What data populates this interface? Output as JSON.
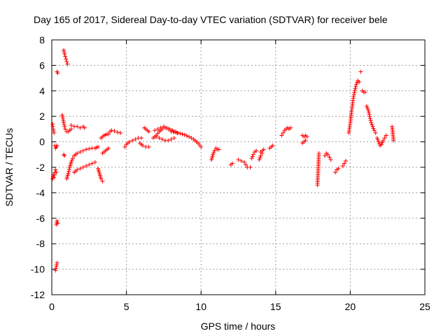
{
  "chart_data": {
    "type": "scatter",
    "title": "Day 165 of 2017, Sidereal Day-to-day VTEC variation (SDTVAR) for receiver bele",
    "xlabel": "GPS time / hours",
    "ylabel": "SDTVAR / TECUs",
    "xlim": [
      0,
      25
    ],
    "ylim": [
      -12,
      8
    ],
    "xticks": [
      0,
      5,
      10,
      15,
      20,
      25
    ],
    "yticks": [
      -12,
      -10,
      -8,
      -6,
      -4,
      -2,
      0,
      2,
      4,
      6,
      8
    ],
    "grid": true,
    "marker": "+",
    "color": "#ff0000",
    "segments": [
      {
        "x": [
          0.05,
          0.1,
          0.15
        ],
        "y": [
          1.4,
          1.0,
          0.7
        ]
      },
      {
        "x": [
          0.05,
          0.1,
          0.15,
          0.2,
          0.25,
          0.3
        ],
        "y": [
          -2.9,
          -2.6,
          -2.8,
          -2.4,
          -2.2,
          -2.4
        ]
      },
      {
        "x": [
          0.2,
          0.25,
          0.3,
          0.35
        ],
        "y": [
          -0.3,
          -0.5,
          -0.4,
          -0.3
        ]
      },
      {
        "x": [
          0.35,
          0.4
        ],
        "y": [
          5.5,
          5.4
        ]
      },
      {
        "x": [
          0.3,
          0.35,
          0.4
        ],
        "y": [
          -6.5,
          -6.2,
          -6.4
        ]
      },
      {
        "x": [
          0.25,
          0.3,
          0.35
        ],
        "y": [
          -10.1,
          -9.8,
          -9.5
        ]
      },
      {
        "x": [
          0.8,
          0.85,
          0.9,
          0.95,
          1.0,
          1.05
        ],
        "y": [
          7.2,
          6.9,
          6.7,
          6.5,
          6.3,
          6.1
        ]
      },
      {
        "x": [
          0.7,
          0.75,
          0.8,
          0.85,
          0.9,
          1.0,
          1.1,
          1.2,
          1.3
        ],
        "y": [
          2.1,
          1.8,
          1.5,
          1.2,
          1.0,
          0.8,
          0.8,
          0.9,
          1.0
        ]
      },
      {
        "x": [
          0.8,
          0.85
        ],
        "y": [
          -1.0,
          -1.1
        ]
      },
      {
        "x": [
          1.3,
          1.5,
          1.7,
          1.9,
          2.1,
          2.2
        ],
        "y": [
          1.3,
          1.2,
          1.2,
          1.1,
          1.2,
          1.1
        ]
      },
      {
        "x": [
          1.0,
          1.1,
          1.2,
          1.3,
          1.4,
          1.5,
          1.7,
          1.9,
          2.1,
          2.3,
          2.5,
          2.7,
          2.9,
          3.0,
          3.1
        ],
        "y": [
          -2.9,
          -2.5,
          -2.0,
          -1.6,
          -1.3,
          -1.1,
          -0.9,
          -0.8,
          -0.7,
          -0.6,
          -0.55,
          -0.5,
          -0.5,
          -0.45,
          -0.4
        ]
      },
      {
        "x": [
          1.5,
          1.7,
          1.9,
          2.1,
          2.3,
          2.5,
          2.7,
          2.9
        ],
        "y": [
          -2.4,
          -2.2,
          -2.1,
          -2.0,
          -1.9,
          -1.8,
          -1.7,
          -1.6
        ]
      },
      {
        "x": [
          3.1,
          3.2,
          3.3,
          3.4
        ],
        "y": [
          -2.1,
          -2.5,
          -2.9,
          -3.1
        ]
      },
      {
        "x": [
          3.4,
          3.5,
          3.6,
          3.7,
          3.8
        ],
        "y": [
          -0.9,
          -0.8,
          -0.7,
          -0.6,
          -0.5
        ]
      },
      {
        "x": [
          3.3,
          3.4,
          3.5,
          3.6,
          3.7,
          3.8
        ],
        "y": [
          0.3,
          0.4,
          0.5,
          0.55,
          0.6,
          0.6
        ]
      },
      {
        "x": [
          3.9,
          4.0,
          4.2,
          4.4,
          4.6
        ],
        "y": [
          0.8,
          0.9,
          0.85,
          0.75,
          0.7
        ]
      },
      {
        "x": [
          4.9,
          5.0,
          5.2,
          5.4,
          5.6,
          5.8,
          6.0
        ],
        "y": [
          -0.4,
          -0.2,
          0.0,
          0.1,
          0.2,
          0.3,
          0.3
        ]
      },
      {
        "x": [
          5.9,
          6.0,
          6.1,
          6.3,
          6.5
        ],
        "y": [
          -0.1,
          -0.2,
          -0.3,
          -0.4,
          -0.4
        ]
      },
      {
        "x": [
          6.2,
          6.3,
          6.4,
          6.5
        ],
        "y": [
          1.1,
          1.0,
          0.9,
          0.8
        ]
      },
      {
        "x": [
          6.8,
          7.0,
          7.2,
          7.4,
          7.6,
          7.8,
          8.0,
          8.2,
          8.4
        ],
        "y": [
          0.3,
          0.5,
          0.8,
          1.0,
          1.1,
          1.0,
          0.9,
          0.8,
          0.7
        ]
      },
      {
        "x": [
          6.9,
          7.1,
          7.3,
          7.5,
          7.7,
          7.9,
          8.1,
          8.3
        ],
        "y": [
          0.9,
          1.0,
          1.1,
          1.2,
          1.1,
          1.0,
          0.9,
          0.8
        ]
      },
      {
        "x": [
          7.0,
          7.2,
          7.4,
          7.6,
          7.8,
          8.0,
          8.2
        ],
        "y": [
          0.4,
          0.3,
          0.2,
          0.1,
          0.1,
          0.2,
          0.3
        ]
      },
      {
        "x": [
          8.0,
          8.3,
          8.6,
          8.9,
          9.2,
          9.5,
          9.8,
          10.0
        ],
        "y": [
          0.8,
          0.75,
          0.65,
          0.55,
          0.4,
          0.2,
          -0.1,
          -0.4
        ]
      },
      {
        "x": [
          10.7,
          10.8,
          10.9,
          11.0,
          11.1,
          11.2
        ],
        "y": [
          -1.4,
          -1.0,
          -0.7,
          -0.5,
          -0.6,
          -0.6
        ]
      },
      {
        "x": [
          12.0,
          12.1
        ],
        "y": [
          -1.8,
          -1.7
        ]
      },
      {
        "x": [
          12.5,
          12.7,
          12.9,
          13.0,
          13.1,
          13.3
        ],
        "y": [
          -1.4,
          -1.5,
          -1.6,
          -1.8,
          -2.0,
          -2.0
        ]
      },
      {
        "x": [
          13.4,
          13.5,
          13.6,
          13.7
        ],
        "y": [
          -1.3,
          -1.0,
          -0.8,
          -0.7
        ]
      },
      {
        "x": [
          13.9,
          14.0,
          14.1
        ],
        "y": [
          -1.4,
          -1.1,
          -0.9
        ]
      },
      {
        "x": [
          14.0,
          14.1,
          14.2
        ],
        "y": [
          -0.8,
          -0.7,
          -0.6
        ]
      },
      {
        "x": [
          14.6,
          14.7,
          14.8
        ],
        "y": [
          -0.5,
          -0.4,
          -0.3
        ]
      },
      {
        "x": [
          15.4,
          15.5,
          15.6,
          15.7,
          15.8,
          15.9,
          16.0
        ],
        "y": [
          0.5,
          0.7,
          0.9,
          1.0,
          1.1,
          1.0,
          1.1
        ]
      },
      {
        "x": [
          16.8,
          16.9,
          17.0,
          17.1
        ],
        "y": [
          0.5,
          0.4,
          0.5,
          0.4
        ]
      },
      {
        "x": [
          16.8,
          16.9,
          17.0
        ],
        "y": [
          -0.1,
          0.0,
          0.1
        ]
      },
      {
        "x": [
          17.8,
          17.9
        ],
        "y": [
          -3.4,
          -0.9
        ]
      },
      {
        "x": [
          18.3,
          18.4,
          18.5,
          18.6,
          18.7
        ],
        "y": [
          -1.1,
          -0.9,
          -1.0,
          -1.2,
          -1.4
        ]
      },
      {
        "x": [
          19.0,
          19.1,
          19.2
        ],
        "y": [
          -2.4,
          -2.2,
          -2.1
        ]
      },
      {
        "x": [
          19.5,
          19.6,
          19.7
        ],
        "y": [
          -1.9,
          -1.7,
          -1.5
        ]
      },
      {
        "x": [
          19.9,
          20.0,
          20.1,
          20.2,
          20.3,
          20.4,
          20.5,
          20.6
        ],
        "y": [
          0.7,
          1.5,
          2.5,
          3.4,
          4.0,
          4.5,
          4.8,
          4.7
        ]
      },
      {
        "x": [
          20.7
        ],
        "y": [
          5.5
        ]
      },
      {
        "x": [
          20.8,
          20.9,
          21.0
        ],
        "y": [
          4.0,
          3.9,
          3.9
        ]
      },
      {
        "x": [
          21.1,
          21.2,
          21.3,
          21.4,
          21.5,
          21.6,
          21.7
        ],
        "y": [
          2.8,
          2.5,
          2.0,
          1.5,
          1.2,
          0.9,
          0.7
        ]
      },
      {
        "x": [
          21.8,
          21.9,
          22.0,
          22.1,
          22.2,
          22.3,
          22.4
        ],
        "y": [
          0.3,
          0.0,
          -0.3,
          -0.2,
          0.1,
          0.3,
          0.5
        ]
      },
      {
        "x": [
          22.8,
          22.9
        ],
        "y": [
          1.2,
          0.1
        ]
      }
    ]
  }
}
